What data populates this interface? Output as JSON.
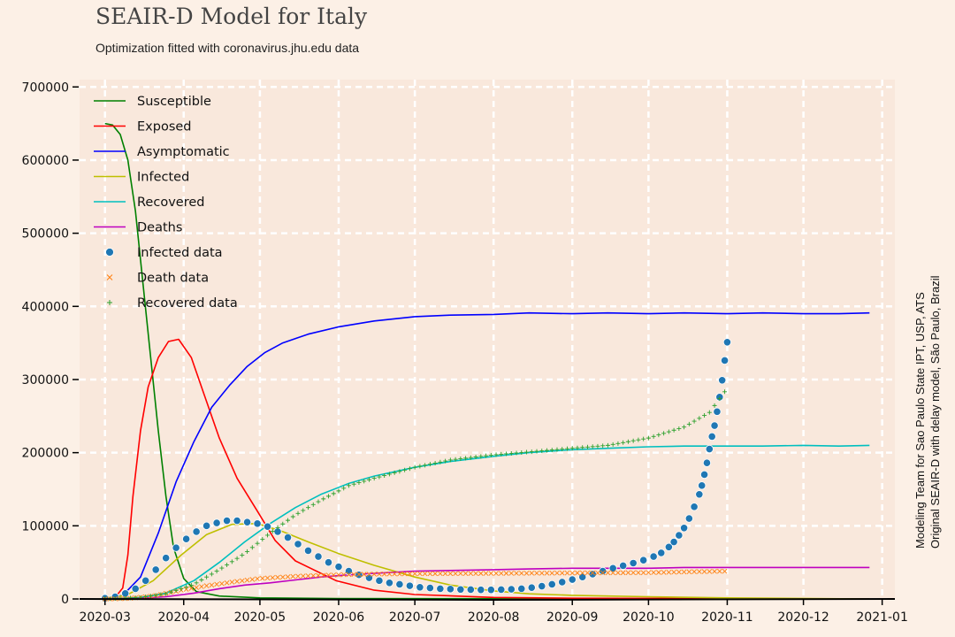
{
  "header": {
    "title": "SEAIR-D Model for Italy",
    "subtitle": "Optimization fitted with coronavirus.jhu.edu data"
  },
  "credits": {
    "line1": "Modeling Team for Sao Paulo State IPT, USP, ATS",
    "line2": "Original SEAIR-D with delay model, São Paulo, Brazil"
  },
  "colors": {
    "background": "#fcf0e6",
    "plot_background": "#f9e8dc",
    "grid": "#ffffff"
  },
  "chart_data": {
    "type": "line",
    "title": "SEAIR-D Model for Italy",
    "subtitle": "Optimization fitted with coronavirus.jhu.edu data",
    "xlabel": "",
    "ylabel": "",
    "x_type": "date",
    "xlim": [
      "2020-02-20",
      "2021-01-06"
    ],
    "ylim": [
      0,
      710000
    ],
    "y_ticks": [
      0,
      100000,
      200000,
      300000,
      400000,
      500000,
      600000,
      700000
    ],
    "x_ticks": [
      "2020-03",
      "2020-04",
      "2020-05",
      "2020-06",
      "2020-07",
      "2020-08",
      "2020-09",
      "2020-10",
      "2020-11",
      "2020-12",
      "2021-01"
    ],
    "grid": true,
    "legend_position": "top-left",
    "series": [
      {
        "name": "Susceptible",
        "kind": "line",
        "color": "#008000",
        "points": [
          [
            "2020-03-01",
            650000
          ],
          [
            "2020-03-04",
            648000
          ],
          [
            "2020-03-07",
            635000
          ],
          [
            "2020-03-10",
            600000
          ],
          [
            "2020-03-13",
            530000
          ],
          [
            "2020-03-16",
            430000
          ],
          [
            "2020-03-19",
            330000
          ],
          [
            "2020-03-22",
            230000
          ],
          [
            "2020-03-25",
            140000
          ],
          [
            "2020-03-28",
            70000
          ],
          [
            "2020-04-01",
            28000
          ],
          [
            "2020-04-06",
            10000
          ],
          [
            "2020-04-15",
            4000
          ],
          [
            "2020-05-01",
            1500
          ],
          [
            "2020-06-01",
            500
          ],
          [
            "2020-12-27",
            0
          ]
        ]
      },
      {
        "name": "Exposed",
        "kind": "line",
        "color": "#ff0000",
        "points": [
          [
            "2020-02-28",
            0
          ],
          [
            "2020-03-05",
            2000
          ],
          [
            "2020-03-08",
            15000
          ],
          [
            "2020-03-10",
            60000
          ],
          [
            "2020-03-12",
            140000
          ],
          [
            "2020-03-15",
            230000
          ],
          [
            "2020-03-18",
            290000
          ],
          [
            "2020-03-22",
            330000
          ],
          [
            "2020-03-26",
            352000
          ],
          [
            "2020-03-30",
            355000
          ],
          [
            "2020-04-04",
            330000
          ],
          [
            "2020-04-09",
            280000
          ],
          [
            "2020-04-15",
            220000
          ],
          [
            "2020-04-22",
            165000
          ],
          [
            "2020-04-30",
            120000
          ],
          [
            "2020-05-07",
            80000
          ],
          [
            "2020-05-15",
            52000
          ],
          [
            "2020-05-31",
            25000
          ],
          [
            "2020-06-15",
            12000
          ],
          [
            "2020-07-01",
            6000
          ],
          [
            "2020-08-01",
            2000
          ],
          [
            "2020-09-01",
            1000
          ],
          [
            "2020-12-27",
            0
          ]
        ]
      },
      {
        "name": "Asymptomatic",
        "kind": "line",
        "color": "#0000ff",
        "points": [
          [
            "2020-03-01",
            0
          ],
          [
            "2020-03-08",
            5000
          ],
          [
            "2020-03-15",
            30000
          ],
          [
            "2020-03-22",
            90000
          ],
          [
            "2020-03-29",
            160000
          ],
          [
            "2020-04-05",
            215000
          ],
          [
            "2020-04-12",
            262000
          ],
          [
            "2020-04-19",
            292000
          ],
          [
            "2020-04-26",
            318000
          ],
          [
            "2020-05-03",
            337000
          ],
          [
            "2020-05-10",
            350000
          ],
          [
            "2020-05-20",
            362000
          ],
          [
            "2020-06-01",
            372000
          ],
          [
            "2020-06-15",
            380000
          ],
          [
            "2020-07-01",
            386000
          ],
          [
            "2020-07-15",
            388000
          ],
          [
            "2020-08-01",
            389000
          ],
          [
            "2020-08-15",
            391000
          ],
          [
            "2020-09-01",
            390000
          ],
          [
            "2020-09-15",
            391000
          ],
          [
            "2020-10-01",
            390000
          ],
          [
            "2020-10-15",
            391000
          ],
          [
            "2020-11-01",
            390000
          ],
          [
            "2020-11-15",
            391000
          ],
          [
            "2020-12-01",
            390000
          ],
          [
            "2020-12-15",
            390000
          ],
          [
            "2020-12-27",
            391000
          ]
        ]
      },
      {
        "name": "Infected",
        "kind": "line",
        "color": "#bfbf00",
        "points": [
          [
            "2020-03-01",
            0
          ],
          [
            "2020-03-10",
            6000
          ],
          [
            "2020-03-20",
            25000
          ],
          [
            "2020-03-31",
            60000
          ],
          [
            "2020-04-10",
            88000
          ],
          [
            "2020-04-20",
            102000
          ],
          [
            "2020-04-30",
            103000
          ],
          [
            "2020-05-10",
            92000
          ],
          [
            "2020-05-20",
            78000
          ],
          [
            "2020-06-01",
            62000
          ],
          [
            "2020-06-15",
            46000
          ],
          [
            "2020-07-01",
            30000
          ],
          [
            "2020-07-15",
            19000
          ],
          [
            "2020-08-01",
            11000
          ],
          [
            "2020-08-15",
            7000
          ],
          [
            "2020-09-01",
            5000
          ],
          [
            "2020-09-15",
            4000
          ],
          [
            "2020-10-01",
            3000
          ],
          [
            "2020-11-01",
            1500
          ],
          [
            "2020-12-27",
            0
          ]
        ]
      },
      {
        "name": "Recovered",
        "kind": "line",
        "color": "#00bfbf",
        "points": [
          [
            "2020-03-01",
            0
          ],
          [
            "2020-03-15",
            2000
          ],
          [
            "2020-03-25",
            8000
          ],
          [
            "2020-04-05",
            25000
          ],
          [
            "2020-04-15",
            50000
          ],
          [
            "2020-04-25",
            78000
          ],
          [
            "2020-05-05",
            103000
          ],
          [
            "2020-05-15",
            125000
          ],
          [
            "2020-05-25",
            143000
          ],
          [
            "2020-06-05",
            158000
          ],
          [
            "2020-06-15",
            168000
          ],
          [
            "2020-07-01",
            180000
          ],
          [
            "2020-07-15",
            188000
          ],
          [
            "2020-08-01",
            195000
          ],
          [
            "2020-08-15",
            200000
          ],
          [
            "2020-09-01",
            204000
          ],
          [
            "2020-09-15",
            206000
          ],
          [
            "2020-10-01",
            208000
          ],
          [
            "2020-10-15",
            209000
          ],
          [
            "2020-11-01",
            209000
          ],
          [
            "2020-11-15",
            209000
          ],
          [
            "2020-12-01",
            210000
          ],
          [
            "2020-12-15",
            209000
          ],
          [
            "2020-12-27",
            210000
          ]
        ]
      },
      {
        "name": "Deaths",
        "kind": "line",
        "color": "#bf00bf",
        "points": [
          [
            "2020-03-01",
            0
          ],
          [
            "2020-03-15",
            1000
          ],
          [
            "2020-03-25",
            3000
          ],
          [
            "2020-04-05",
            8000
          ],
          [
            "2020-04-15",
            14000
          ],
          [
            "2020-04-25",
            19000
          ],
          [
            "2020-05-05",
            22000
          ],
          [
            "2020-05-15",
            26000
          ],
          [
            "2020-05-25",
            30000
          ],
          [
            "2020-06-05",
            33000
          ],
          [
            "2020-06-15",
            35000
          ],
          [
            "2020-07-01",
            38000
          ],
          [
            "2020-07-15",
            39000
          ],
          [
            "2020-08-01",
            40000
          ],
          [
            "2020-08-15",
            41000
          ],
          [
            "2020-09-01",
            42000
          ],
          [
            "2020-09-15",
            42000
          ],
          [
            "2020-10-01",
            42000
          ],
          [
            "2020-10-15",
            43000
          ],
          [
            "2020-11-01",
            43000
          ],
          [
            "2020-11-15",
            43000
          ],
          [
            "2020-12-01",
            43000
          ],
          [
            "2020-12-15",
            43000
          ],
          [
            "2020-12-27",
            43000
          ]
        ]
      },
      {
        "name": "Infected data",
        "kind": "scatter",
        "marker": "circle",
        "color": "#1f77b4",
        "points": [
          [
            "2020-03-01",
            1000
          ],
          [
            "2020-03-05",
            3000
          ],
          [
            "2020-03-09",
            7500
          ],
          [
            "2020-03-13",
            14000
          ],
          [
            "2020-03-17",
            25000
          ],
          [
            "2020-03-21",
            40000
          ],
          [
            "2020-03-25",
            56000
          ],
          [
            "2020-03-29",
            70000
          ],
          [
            "2020-04-02",
            82000
          ],
          [
            "2020-04-06",
            92000
          ],
          [
            "2020-04-10",
            100000
          ],
          [
            "2020-04-14",
            104000
          ],
          [
            "2020-04-18",
            107000
          ],
          [
            "2020-04-22",
            107000
          ],
          [
            "2020-04-26",
            105000
          ],
          [
            "2020-04-30",
            103000
          ],
          [
            "2020-05-04",
            99000
          ],
          [
            "2020-05-08",
            92000
          ],
          [
            "2020-05-12",
            84000
          ],
          [
            "2020-05-16",
            75000
          ],
          [
            "2020-05-20",
            66000
          ],
          [
            "2020-05-24",
            58000
          ],
          [
            "2020-05-28",
            50000
          ],
          [
            "2020-06-01",
            44000
          ],
          [
            "2020-06-05",
            38000
          ],
          [
            "2020-06-09",
            33000
          ],
          [
            "2020-06-13",
            29000
          ],
          [
            "2020-06-17",
            25000
          ],
          [
            "2020-06-21",
            22000
          ],
          [
            "2020-06-25",
            20000
          ],
          [
            "2020-06-29",
            18000
          ],
          [
            "2020-07-03",
            16000
          ],
          [
            "2020-07-07",
            15000
          ],
          [
            "2020-07-11",
            14000
          ],
          [
            "2020-07-15",
            13500
          ],
          [
            "2020-07-19",
            13000
          ],
          [
            "2020-07-23",
            12800
          ],
          [
            "2020-07-27",
            12500
          ],
          [
            "2020-07-31",
            12500
          ],
          [
            "2020-08-04",
            12800
          ],
          [
            "2020-08-08",
            13200
          ],
          [
            "2020-08-12",
            14000
          ],
          [
            "2020-08-16",
            15500
          ],
          [
            "2020-08-20",
            17500
          ],
          [
            "2020-08-24",
            20000
          ],
          [
            "2020-08-28",
            23000
          ],
          [
            "2020-09-01",
            26500
          ],
          [
            "2020-09-05",
            30000
          ],
          [
            "2020-09-09",
            34000
          ],
          [
            "2020-09-13",
            38000
          ],
          [
            "2020-09-17",
            42000
          ],
          [
            "2020-09-21",
            45500
          ],
          [
            "2020-09-25",
            49000
          ],
          [
            "2020-09-29",
            53000
          ],
          [
            "2020-10-03",
            58000
          ],
          [
            "2020-10-06",
            63000
          ],
          [
            "2020-10-09",
            71000
          ],
          [
            "2020-10-11",
            78000
          ],
          [
            "2020-10-13",
            87000
          ],
          [
            "2020-10-15",
            97000
          ],
          [
            "2020-10-17",
            110000
          ],
          [
            "2020-10-19",
            126000
          ],
          [
            "2020-10-21",
            143000
          ],
          [
            "2020-10-22",
            155000
          ],
          [
            "2020-10-23",
            170000
          ],
          [
            "2020-10-24",
            186000
          ],
          [
            "2020-10-25",
            205000
          ],
          [
            "2020-10-26",
            222000
          ],
          [
            "2020-10-27",
            237000
          ],
          [
            "2020-10-28",
            256000
          ],
          [
            "2020-10-29",
            276000
          ],
          [
            "2020-10-30",
            299000
          ],
          [
            "2020-10-31",
            326000
          ],
          [
            "2020-11-01",
            351000
          ]
        ]
      },
      {
        "name": "Death data",
        "kind": "scatter",
        "marker": "x",
        "color": "#ff7f0e",
        "points": [
          [
            "2020-03-01",
            0
          ],
          [
            "2020-03-10",
            600
          ],
          [
            "2020-03-20",
            4000
          ],
          [
            "2020-03-31",
            12000
          ],
          [
            "2020-04-10",
            18000
          ],
          [
            "2020-04-20",
            23000
          ],
          [
            "2020-05-01",
            28000
          ],
          [
            "2020-05-15",
            31000
          ],
          [
            "2020-06-01",
            33000
          ],
          [
            "2020-06-15",
            34000
          ],
          [
            "2020-07-01",
            34500
          ],
          [
            "2020-08-01",
            35000
          ],
          [
            "2020-09-01",
            35500
          ],
          [
            "2020-10-01",
            36000
          ],
          [
            "2020-10-15",
            37000
          ],
          [
            "2020-11-01",
            38000
          ]
        ]
      },
      {
        "name": "Recovered data",
        "kind": "scatter",
        "marker": "plus",
        "color": "#2ca02c",
        "points": [
          [
            "2020-03-01",
            0
          ],
          [
            "2020-03-15",
            2000
          ],
          [
            "2020-03-25",
            7000
          ],
          [
            "2020-04-05",
            20000
          ],
          [
            "2020-04-15",
            40000
          ],
          [
            "2020-04-25",
            62000
          ],
          [
            "2020-05-05",
            90000
          ],
          [
            "2020-05-15",
            115000
          ],
          [
            "2020-05-25",
            135000
          ],
          [
            "2020-06-05",
            155000
          ],
          [
            "2020-06-15",
            165000
          ],
          [
            "2020-07-01",
            180000
          ],
          [
            "2020-07-15",
            190000
          ],
          [
            "2020-08-01",
            197000
          ],
          [
            "2020-08-15",
            201000
          ],
          [
            "2020-09-01",
            206000
          ],
          [
            "2020-09-15",
            210000
          ],
          [
            "2020-10-01",
            220000
          ],
          [
            "2020-10-15",
            235000
          ],
          [
            "2020-10-25",
            255000
          ],
          [
            "2020-11-01",
            288000
          ]
        ]
      }
    ]
  }
}
